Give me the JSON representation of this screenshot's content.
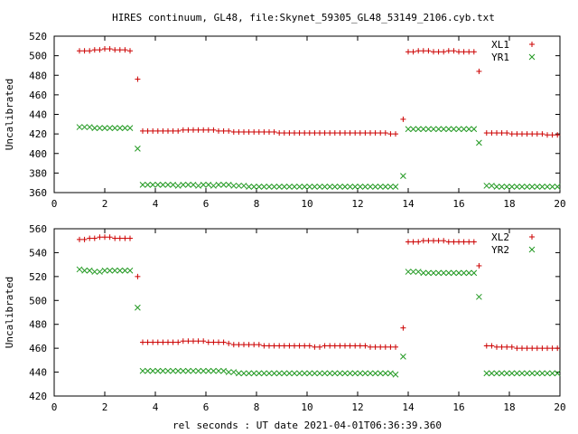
{
  "title": "HIRES continuum, GL48, file:Skynet_59305_GL48_53149_2106.cyb.txt",
  "xlabel": "rel seconds : UT date 2021-04-01T06:36:39.360",
  "colors": {
    "series_a": "#cc0000",
    "series_b": "#229922",
    "axis": "#000000"
  },
  "chart_data": [
    {
      "type": "scatter",
      "ylabel": "Uncalibrated",
      "xlim": [
        0,
        20
      ],
      "ylim": [
        360,
        520
      ],
      "xticks": [
        0,
        2,
        4,
        6,
        8,
        10,
        12,
        14,
        16,
        18,
        20
      ],
      "yticks": [
        360,
        380,
        400,
        420,
        440,
        460,
        480,
        500,
        520
      ],
      "legend_position": "top-right",
      "series": [
        {
          "name": "XL1",
          "marker": "plus",
          "x": [
            1.0,
            1.2,
            1.4,
            1.6,
            1.8,
            2.0,
            2.2,
            2.4,
            2.6,
            2.8,
            3.0,
            3.3,
            3.5,
            3.7,
            3.9,
            4.1,
            4.3,
            4.5,
            4.7,
            4.9,
            5.1,
            5.3,
            5.5,
            5.7,
            5.9,
            6.1,
            6.3,
            6.5,
            6.7,
            6.9,
            7.1,
            7.3,
            7.5,
            7.7,
            7.9,
            8.1,
            8.3,
            8.5,
            8.7,
            8.9,
            9.1,
            9.3,
            9.5,
            9.7,
            9.9,
            10.1,
            10.3,
            10.5,
            10.7,
            10.9,
            11.1,
            11.3,
            11.5,
            11.7,
            11.9,
            12.1,
            12.3,
            12.5,
            12.7,
            12.9,
            13.1,
            13.3,
            13.5,
            13.8,
            14.0,
            14.2,
            14.4,
            14.6,
            14.8,
            15.0,
            15.2,
            15.4,
            15.6,
            15.8,
            16.0,
            16.2,
            16.4,
            16.6,
            16.8,
            17.1,
            17.3,
            17.5,
            17.7,
            17.9,
            18.1,
            18.3,
            18.5,
            18.7,
            18.9,
            19.1,
            19.3,
            19.5,
            19.7,
            19.9
          ],
          "y": [
            505,
            505,
            505,
            506,
            506,
            507,
            507,
            506,
            506,
            506,
            505,
            476,
            423,
            423,
            423,
            423,
            423,
            423,
            423,
            423,
            424,
            424,
            424,
            424,
            424,
            424,
            424,
            423,
            423,
            423,
            422,
            422,
            422,
            422,
            422,
            422,
            422,
            422,
            422,
            421,
            421,
            421,
            421,
            421,
            421,
            421,
            421,
            421,
            421,
            421,
            421,
            421,
            421,
            421,
            421,
            421,
            421,
            421,
            421,
            421,
            421,
            420,
            420,
            435,
            504,
            504,
            505,
            505,
            505,
            504,
            504,
            504,
            505,
            505,
            504,
            504,
            504,
            504,
            484,
            421,
            421,
            421,
            421,
            421,
            420,
            420,
            420,
            420,
            420,
            420,
            420,
            419,
            419,
            419
          ]
        },
        {
          "name": "YR1",
          "marker": "cross",
          "x": [
            1.0,
            1.2,
            1.4,
            1.6,
            1.8,
            2.0,
            2.2,
            2.4,
            2.6,
            2.8,
            3.0,
            3.3,
            3.5,
            3.7,
            3.9,
            4.1,
            4.3,
            4.5,
            4.7,
            4.9,
            5.1,
            5.3,
            5.5,
            5.7,
            5.9,
            6.1,
            6.3,
            6.5,
            6.7,
            6.9,
            7.1,
            7.3,
            7.5,
            7.7,
            7.9,
            8.1,
            8.3,
            8.5,
            8.7,
            8.9,
            9.1,
            9.3,
            9.5,
            9.7,
            9.9,
            10.1,
            10.3,
            10.5,
            10.7,
            10.9,
            11.1,
            11.3,
            11.5,
            11.7,
            11.9,
            12.1,
            12.3,
            12.5,
            12.7,
            12.9,
            13.1,
            13.3,
            13.5,
            13.8,
            14.0,
            14.2,
            14.4,
            14.6,
            14.8,
            15.0,
            15.2,
            15.4,
            15.6,
            15.8,
            16.0,
            16.2,
            16.4,
            16.6,
            16.8,
            17.1,
            17.3,
            17.5,
            17.7,
            17.9,
            18.1,
            18.3,
            18.5,
            18.7,
            18.9,
            19.1,
            19.3,
            19.5,
            19.7,
            19.9
          ],
          "y": [
            427,
            427,
            427,
            426,
            426,
            426,
            426,
            426,
            426,
            426,
            426,
            405,
            368,
            368,
            368,
            368,
            368,
            368,
            368,
            367,
            368,
            368,
            368,
            367,
            368,
            368,
            367,
            368,
            368,
            368,
            367,
            367,
            367,
            366,
            366,
            366,
            366,
            366,
            366,
            366,
            366,
            366,
            366,
            366,
            366,
            366,
            366,
            366,
            366,
            366,
            366,
            366,
            366,
            366,
            366,
            366,
            366,
            366,
            366,
            366,
            366,
            366,
            366,
            377,
            425,
            425,
            425,
            425,
            425,
            425,
            425,
            425,
            425,
            425,
            425,
            425,
            425,
            425,
            411,
            367,
            367,
            366,
            366,
            366,
            366,
            366,
            366,
            366,
            366,
            366,
            366,
            366,
            366,
            366
          ]
        }
      ]
    },
    {
      "type": "scatter",
      "ylabel": "Uncalibrated",
      "xlim": [
        0,
        20
      ],
      "ylim": [
        420,
        560
      ],
      "xticks": [
        0,
        2,
        4,
        6,
        8,
        10,
        12,
        14,
        16,
        18,
        20
      ],
      "yticks": [
        420,
        440,
        460,
        480,
        500,
        520,
        540,
        560
      ],
      "legend_position": "top-right",
      "series": [
        {
          "name": "XL2",
          "marker": "plus",
          "x": [
            1.0,
            1.2,
            1.4,
            1.6,
            1.8,
            2.0,
            2.2,
            2.4,
            2.6,
            2.8,
            3.0,
            3.3,
            3.5,
            3.7,
            3.9,
            4.1,
            4.3,
            4.5,
            4.7,
            4.9,
            5.1,
            5.3,
            5.5,
            5.7,
            5.9,
            6.1,
            6.3,
            6.5,
            6.7,
            6.9,
            7.1,
            7.3,
            7.5,
            7.7,
            7.9,
            8.1,
            8.3,
            8.5,
            8.7,
            8.9,
            9.1,
            9.3,
            9.5,
            9.7,
            9.9,
            10.1,
            10.3,
            10.5,
            10.7,
            10.9,
            11.1,
            11.3,
            11.5,
            11.7,
            11.9,
            12.1,
            12.3,
            12.5,
            12.7,
            12.9,
            13.1,
            13.3,
            13.5,
            13.8,
            14.0,
            14.2,
            14.4,
            14.6,
            14.8,
            15.0,
            15.2,
            15.4,
            15.6,
            15.8,
            16.0,
            16.2,
            16.4,
            16.6,
            16.8,
            17.1,
            17.3,
            17.5,
            17.7,
            17.9,
            18.1,
            18.3,
            18.5,
            18.7,
            18.9,
            19.1,
            19.3,
            19.5,
            19.7,
            19.9
          ],
          "y": [
            551,
            551,
            552,
            552,
            553,
            553,
            553,
            552,
            552,
            552,
            552,
            520,
            465,
            465,
            465,
            465,
            465,
            465,
            465,
            465,
            466,
            466,
            466,
            466,
            466,
            465,
            465,
            465,
            465,
            464,
            463,
            463,
            463,
            463,
            463,
            463,
            462,
            462,
            462,
            462,
            462,
            462,
            462,
            462,
            462,
            462,
            461,
            461,
            462,
            462,
            462,
            462,
            462,
            462,
            462,
            462,
            462,
            461,
            461,
            461,
            461,
            461,
            461,
            477,
            549,
            549,
            549,
            550,
            550,
            550,
            550,
            550,
            549,
            549,
            549,
            549,
            549,
            549,
            529,
            462,
            462,
            461,
            461,
            461,
            461,
            460,
            460,
            460,
            460,
            460,
            460,
            460,
            460,
            460
          ]
        },
        {
          "name": "YR2",
          "marker": "cross",
          "x": [
            1.0,
            1.2,
            1.4,
            1.6,
            1.8,
            2.0,
            2.2,
            2.4,
            2.6,
            2.8,
            3.0,
            3.3,
            3.5,
            3.7,
            3.9,
            4.1,
            4.3,
            4.5,
            4.7,
            4.9,
            5.1,
            5.3,
            5.5,
            5.7,
            5.9,
            6.1,
            6.3,
            6.5,
            6.7,
            6.9,
            7.1,
            7.3,
            7.5,
            7.7,
            7.9,
            8.1,
            8.3,
            8.5,
            8.7,
            8.9,
            9.1,
            9.3,
            9.5,
            9.7,
            9.9,
            10.1,
            10.3,
            10.5,
            10.7,
            10.9,
            11.1,
            11.3,
            11.5,
            11.7,
            11.9,
            12.1,
            12.3,
            12.5,
            12.7,
            12.9,
            13.1,
            13.3,
            13.5,
            13.8,
            14.0,
            14.2,
            14.4,
            14.6,
            14.8,
            15.0,
            15.2,
            15.4,
            15.6,
            15.8,
            16.0,
            16.2,
            16.4,
            16.6,
            16.8,
            17.1,
            17.3,
            17.5,
            17.7,
            17.9,
            18.1,
            18.3,
            18.5,
            18.7,
            18.9,
            19.1,
            19.3,
            19.5,
            19.7,
            19.9
          ],
          "y": [
            526,
            525,
            525,
            524,
            524,
            525,
            525,
            525,
            525,
            525,
            525,
            494,
            441,
            441,
            441,
            441,
            441,
            441,
            441,
            441,
            441,
            441,
            441,
            441,
            441,
            441,
            441,
            441,
            441,
            440,
            440,
            439,
            439,
            439,
            439,
            439,
            439,
            439,
            439,
            439,
            439,
            439,
            439,
            439,
            439,
            439,
            439,
            439,
            439,
            439,
            439,
            439,
            439,
            439,
            439,
            439,
            439,
            439,
            439,
            439,
            439,
            439,
            438,
            453,
            524,
            524,
            524,
            523,
            523,
            523,
            523,
            523,
            523,
            523,
            523,
            523,
            523,
            523,
            503,
            439,
            439,
            439,
            439,
            439,
            439,
            439,
            439,
            439,
            439,
            439,
            439,
            439,
            439,
            439
          ]
        }
      ]
    }
  ]
}
